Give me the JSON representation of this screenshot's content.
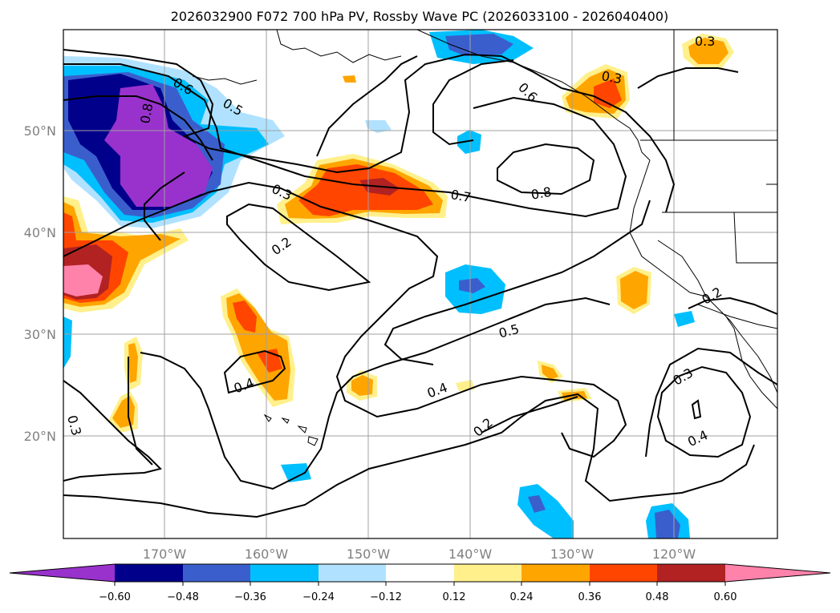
{
  "title": "2026032900 F072 700 hPa PV, Rossby Wave PC (2026033100 - 2026040400)",
  "lat_labels": [
    "50°N",
    "40°N",
    "30°N",
    "20°N"
  ],
  "lon_labels": [
    "170°W",
    "160°W",
    "150°W",
    "140°W",
    "130°W",
    "120°W"
  ],
  "colorbar": {
    "ticks": [
      "−0.60",
      "−0.48",
      "−0.36",
      "−0.24",
      "−0.12",
      "0.12",
      "0.24",
      "0.36",
      "0.48",
      "0.60"
    ],
    "colors": [
      "#9932cc",
      "#00008b",
      "#3a5fcd",
      "#00bfff",
      "#b0e2ff",
      "#ffffff",
      "#fff08c",
      "#ffa500",
      "#ff4500",
      "#b22222",
      "#ff82ab"
    ]
  },
  "contour_labels": {
    "c1": "0.6",
    "c2": "0.5",
    "c3": "0.8",
    "c4": "0.2",
    "c5": "0.3",
    "c6": "0.7",
    "c7": "0.8",
    "c8": "0.6",
    "c9": "0.3",
    "c10": "0.3",
    "c11": "0.5",
    "c12": "0.4",
    "c13": "0.4",
    "c14": "0.2",
    "c15": "0.2",
    "c16": "0.3",
    "c17": "0.4",
    "c18": "0.3"
  },
  "palette": {
    "purple": "#9932cc",
    "navy": "#00008b",
    "blue": "#3a5fcd",
    "sky": "#00bfff",
    "pale_blue": "#b0e2ff",
    "yellow": "#fff08c",
    "orange": "#ffa500",
    "red_orange": "#ff4500",
    "dark_red": "#b22222",
    "pink": "#ff82ab"
  }
}
